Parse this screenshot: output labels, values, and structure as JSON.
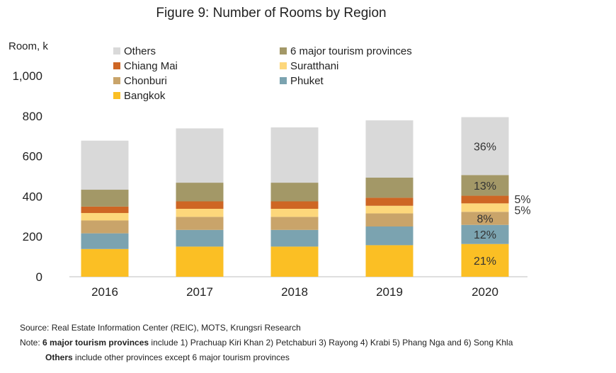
{
  "chart_data": {
    "type": "bar",
    "stacked": true,
    "title": "Figure 9: Number of Rooms by Region",
    "ylabel": "Room, k",
    "ylim": [
      0,
      1000
    ],
    "y_ticks": [
      "0",
      "200",
      "400",
      "600",
      "800",
      "1,000"
    ],
    "y_tick_values": [
      0,
      200,
      400,
      600,
      800,
      1000
    ],
    "categories": [
      "2016",
      "2017",
      "2018",
      "2019",
      "2020"
    ],
    "series": [
      {
        "name": "Bangkok",
        "color": "#FBBF24",
        "values": [
          138,
          150,
          150,
          157,
          163
        ]
      },
      {
        "name": "Phuket",
        "color": "#7BA3B0",
        "values": [
          78,
          83,
          83,
          93,
          95
        ]
      },
      {
        "name": "Chonburi",
        "color": "#C9A46A",
        "values": [
          64,
          65,
          65,
          65,
          65
        ]
      },
      {
        "name": "Suratthani",
        "color": "#FDD77B",
        "values": [
          37,
          40,
          40,
          38,
          42
        ]
      },
      {
        "name": "Chiang Mai",
        "color": "#CE6624",
        "values": [
          32,
          37,
          37,
          40,
          38
        ]
      },
      {
        "name": "6 major tourism provinces",
        "color": "#A39867",
        "values": [
          84,
          93,
          93,
          100,
          103
        ]
      },
      {
        "name": "Others",
        "color": "#D9D9D9",
        "values": [
          244,
          270,
          275,
          285,
          288
        ]
      }
    ],
    "legend": {
      "placement": "top-left",
      "rows": [
        [
          "Others",
          "6 major tourism provinces"
        ],
        [
          "Chiang Mai",
          "Suratthani"
        ],
        [
          "Chonburi",
          "Phuket"
        ],
        [
          "Bangkok",
          ""
        ]
      ]
    },
    "annotations": [
      {
        "text": "36%",
        "series": "Others",
        "category": "2020",
        "position": "inside"
      },
      {
        "text": "13%",
        "series": "6 major tourism provinces",
        "category": "2020",
        "position": "inside"
      },
      {
        "text": "5%",
        "series": "Chiang Mai",
        "category": "2020",
        "position": "outside-right"
      },
      {
        "text": "5%",
        "series": "Suratthani",
        "category": "2020",
        "position": "outside-right"
      },
      {
        "text": "8%",
        "series": "Chonburi",
        "category": "2020",
        "position": "inside"
      },
      {
        "text": "12%",
        "series": "Phuket",
        "category": "2020",
        "position": "inside"
      },
      {
        "text": "21%",
        "series": "Bangkok",
        "category": "2020",
        "position": "inside"
      }
    ],
    "grid": false
  },
  "notes": {
    "source": "Source: Real Estate Information Center (REIC), MOTS, Krungsri Research",
    "note_prefix": "Note: ",
    "note_bold_1": "6 major tourism provinces",
    "note_rest_1": " include 1) Prachuap Kiri Khan 2) Petchaburi  3) Rayong  4) Krabi  5) Phang Nga  and 6) Song Khla",
    "note_bold_2": "Others",
    "note_rest_2": " include other provinces except 6 major tourism provinces"
  }
}
